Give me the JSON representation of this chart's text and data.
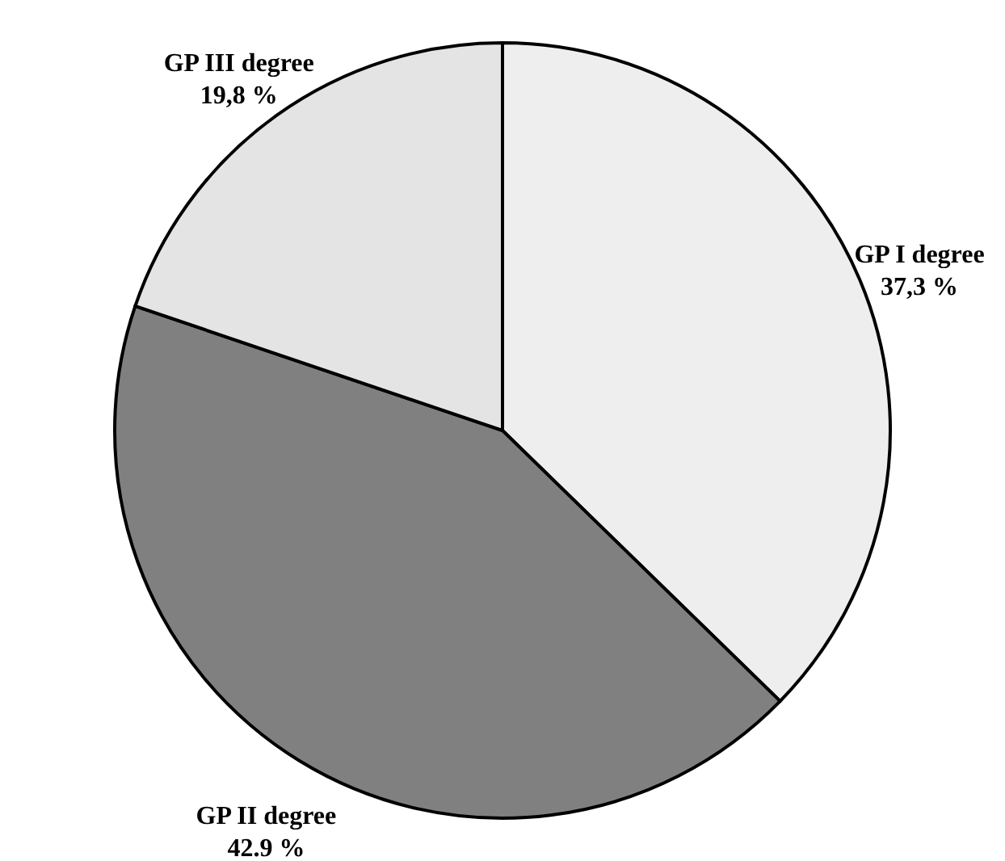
{
  "chart_data": {
    "type": "pie",
    "categories": [
      "GP I degree",
      "GP II degree",
      "GP III degree"
    ],
    "values": [
      37.3,
      42.9,
      19.8
    ],
    "value_labels": [
      "37,3 %",
      "42.9 %",
      "19,8 %"
    ],
    "colors": [
      "#eeeeee",
      "#808080",
      "#e4e4e4"
    ]
  }
}
